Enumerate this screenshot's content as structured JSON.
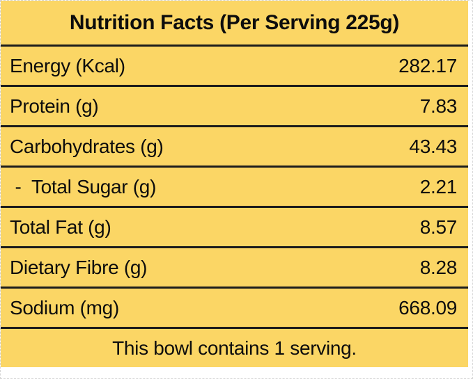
{
  "table": {
    "title": "Nutrition Facts (Per Serving 225g)",
    "rows": [
      {
        "label": "Energy (Kcal)",
        "value": "282.17"
      },
      {
        "label": "Protein (g)",
        "value": "7.83"
      },
      {
        "label": "Carbohydrates (g)",
        "value": "43.43"
      },
      {
        "label": " -  Total Sugar (g)",
        "value": "2.21"
      },
      {
        "label": "Total Fat (g)",
        "value": "8.57"
      },
      {
        "label": "Dietary Fibre (g)",
        "value": "8.28"
      },
      {
        "label": "Sodium (mg)",
        "value": "668.09"
      }
    ],
    "footer": "This bowl contains 1 serving."
  },
  "colors": {
    "table_background": "#FBD665",
    "separator": "#1C1C1C",
    "text": "#0D0D0D",
    "page_background": "#FFFFFF"
  }
}
